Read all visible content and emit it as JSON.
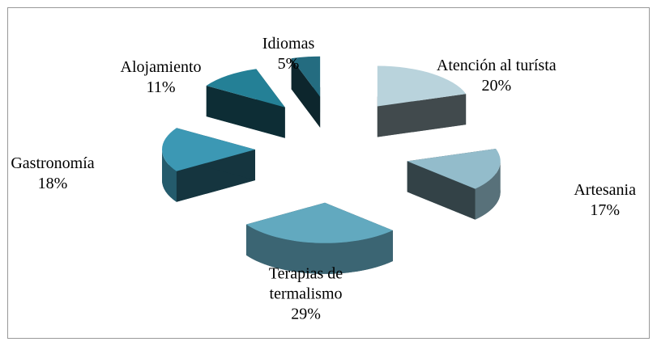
{
  "chart_data": {
    "type": "pie",
    "categories": [
      "Atención al turísta",
      "Artesania",
      "Terapias de termalismo",
      "Gastronomía",
      "Alojamiento",
      "Idiomas"
    ],
    "values": [
      20,
      17,
      29,
      18,
      11,
      5
    ],
    "value_labels": [
      "20%",
      "17%",
      "29%",
      "18%",
      "11%",
      "5%"
    ],
    "colors": [
      "#b9d3dc",
      "#93bccb",
      "#62a9bf",
      "#3c98b4",
      "#248096",
      "#246c80"
    ]
  }
}
